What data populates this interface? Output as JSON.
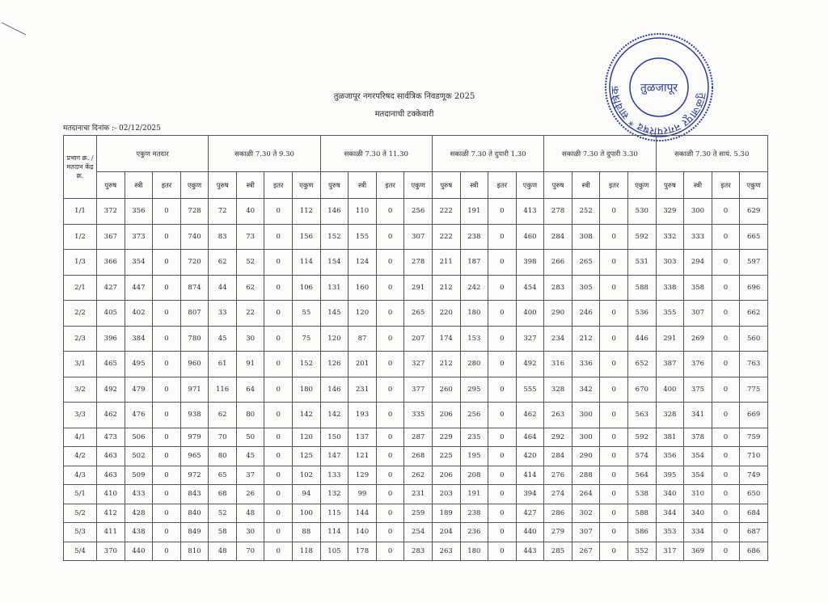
{
  "document": {
    "title": "तुळजापूर नगरपरिषद सार्वत्रिक निवडणूक 2025",
    "subtitle": "मतदानाची टक्केवारी",
    "date_label": "मतदानाचा दिनांक :- 02/12/2025",
    "stamp": {
      "outer_text": "तुळजापूर नगरपरिषद * सार्वत्रिक निवडणूक-२०२५ *",
      "center_text": "तुळजापूर",
      "color": "#2b3a9a"
    }
  },
  "table": {
    "corner_header": "प्रभाग क्र. / मतदान केंद्र क्र.",
    "groups": [
      "एकुण मतदार",
      "सकाळी 7.30 ते 9.30",
      "सकाळी 7.30 ते 11.30",
      "सकाळी 7.30 ते दुपारी 1.30",
      "सकाळी 7.30 ते दुपारी 3.30",
      "सकाळी 7.30 ते सायं. 5.30"
    ],
    "sub_headers": [
      "पुरुष",
      "स्त्री",
      "इतर",
      "एकुण"
    ],
    "rows": [
      {
        "id": "1/1",
        "v": [
          372,
          356,
          0,
          728,
          72,
          40,
          0,
          112,
          146,
          110,
          0,
          256,
          222,
          191,
          0,
          413,
          278,
          252,
          0,
          530,
          329,
          300,
          0,
          629
        ]
      },
      {
        "id": "1/2",
        "v": [
          367,
          373,
          0,
          740,
          83,
          73,
          0,
          156,
          152,
          155,
          0,
          307,
          222,
          238,
          0,
          460,
          284,
          308,
          0,
          592,
          332,
          333,
          0,
          665
        ]
      },
      {
        "id": "1/3",
        "v": [
          366,
          354,
          0,
          720,
          62,
          52,
          0,
          114,
          154,
          124,
          0,
          278,
          211,
          187,
          0,
          398,
          266,
          265,
          0,
          531,
          303,
          294,
          0,
          597
        ]
      },
      {
        "id": "2/1",
        "v": [
          427,
          447,
          0,
          874,
          44,
          62,
          0,
          106,
          131,
          160,
          0,
          291,
          212,
          242,
          0,
          454,
          283,
          305,
          0,
          588,
          338,
          358,
          0,
          696
        ]
      },
      {
        "id": "2/2",
        "v": [
          405,
          402,
          0,
          807,
          33,
          22,
          0,
          55,
          145,
          120,
          0,
          265,
          220,
          180,
          0,
          400,
          290,
          246,
          0,
          536,
          355,
          307,
          0,
          662
        ]
      },
      {
        "id": "2/3",
        "v": [
          396,
          384,
          0,
          780,
          45,
          30,
          0,
          75,
          120,
          87,
          0,
          207,
          174,
          153,
          0,
          327,
          234,
          212,
          0,
          446,
          291,
          269,
          0,
          560
        ]
      },
      {
        "id": "3/1",
        "v": [
          465,
          495,
          0,
          960,
          61,
          91,
          0,
          152,
          126,
          201,
          0,
          327,
          212,
          280,
          0,
          492,
          316,
          336,
          0,
          652,
          387,
          376,
          0,
          763
        ]
      },
      {
        "id": "3/2",
        "v": [
          492,
          479,
          0,
          971,
          116,
          64,
          0,
          180,
          146,
          231,
          0,
          377,
          260,
          295,
          0,
          555,
          328,
          342,
          0,
          670,
          400,
          375,
          0,
          775
        ]
      },
      {
        "id": "3/3",
        "v": [
          462,
          476,
          0,
          938,
          62,
          80,
          0,
          142,
          142,
          193,
          0,
          335,
          206,
          256,
          0,
          462,
          263,
          300,
          0,
          563,
          328,
          341,
          0,
          669
        ]
      },
      {
        "id": "4/1",
        "v": [
          473,
          506,
          0,
          979,
          70,
          50,
          0,
          120,
          150,
          137,
          0,
          287,
          229,
          235,
          0,
          464,
          292,
          300,
          0,
          592,
          381,
          378,
          0,
          759
        ]
      },
      {
        "id": "4/2",
        "v": [
          463,
          502,
          0,
          965,
          80,
          45,
          0,
          125,
          147,
          121,
          0,
          268,
          225,
          195,
          0,
          420,
          284,
          290,
          0,
          574,
          356,
          354,
          0,
          710
        ]
      },
      {
        "id": "4/3",
        "v": [
          463,
          509,
          0,
          972,
          65,
          37,
          0,
          102,
          133,
          129,
          0,
          262,
          206,
          208,
          0,
          414,
          276,
          288,
          0,
          564,
          395,
          354,
          0,
          749
        ]
      },
      {
        "id": "5/1",
        "v": [
          410,
          433,
          0,
          843,
          68,
          26,
          0,
          94,
          132,
          99,
          0,
          231,
          203,
          191,
          0,
          394,
          274,
          264,
          0,
          538,
          340,
          310,
          0,
          650
        ]
      },
      {
        "id": "5/2",
        "v": [
          412,
          428,
          0,
          840,
          52,
          48,
          0,
          100,
          115,
          144,
          0,
          259,
          189,
          238,
          0,
          427,
          286,
          302,
          0,
          588,
          344,
          340,
          0,
          684
        ]
      },
      {
        "id": "5/3",
        "v": [
          411,
          438,
          0,
          849,
          58,
          30,
          0,
          88,
          114,
          140,
          0,
          254,
          204,
          236,
          0,
          440,
          279,
          307,
          0,
          586,
          353,
          334,
          0,
          687
        ]
      },
      {
        "id": "5/4",
        "v": [
          370,
          440,
          0,
          810,
          48,
          70,
          0,
          118,
          105,
          178,
          0,
          283,
          263,
          180,
          0,
          443,
          285,
          267,
          0,
          552,
          317,
          369,
          0,
          686
        ]
      }
    ]
  }
}
